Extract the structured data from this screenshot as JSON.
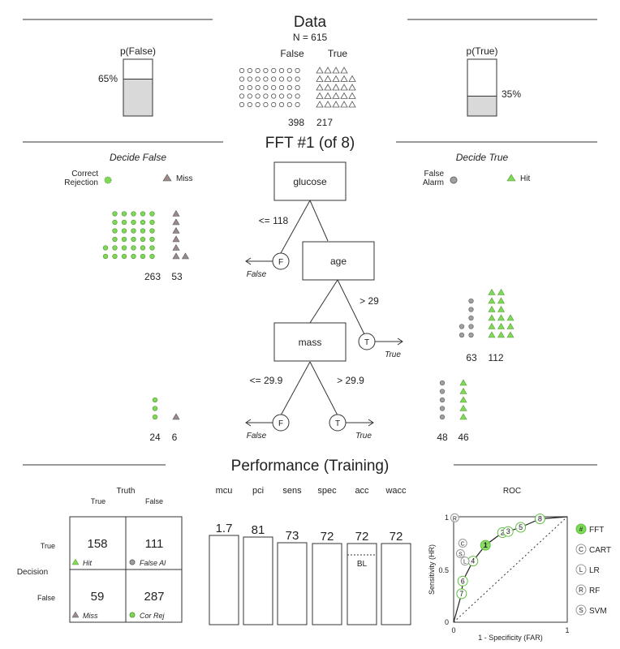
{
  "data_section": {
    "title": "Data",
    "n_label": "N = 615",
    "class_false": "False",
    "class_true": "True",
    "count_false": "398",
    "count_true": "217",
    "p_false_label": "p(False)",
    "p_false_pct": "65%",
    "p_false_value": 0.65,
    "p_true_label": "p(True)",
    "p_true_pct": "35%",
    "p_true_value": 0.35
  },
  "tree": {
    "title": "FFT #1 (of 8)",
    "decide_false": "Decide False",
    "decide_true": "Decide True",
    "legend": {
      "correct_rejection": "Correct Rejection",
      "miss": "Miss",
      "false_alarm": "False Alarm",
      "hit": "Hit"
    },
    "nodes": {
      "glucose": "glucose",
      "age": "age",
      "mass": "mass"
    },
    "edges": {
      "glucose_le": "<= 118",
      "age_gt": "> 29",
      "mass_le": "<= 29.9",
      "mass_gt": "> 29.9"
    },
    "exits": {
      "f": "F",
      "t": "T",
      "false_label": "False",
      "true_label": "True"
    },
    "leaves": {
      "glucose_false": {
        "cr": "263",
        "miss": "53"
      },
      "age_true": {
        "fa": "63",
        "hit": "112"
      },
      "mass_false": {
        "cr": "24",
        "miss": "6"
      },
      "mass_true": {
        "fa": "48",
        "hit": "46"
      }
    },
    "colors": {
      "green": "#7ed957",
      "gray": "#a0a0a0",
      "miss": "#9a8a8a"
    }
  },
  "performance": {
    "title": "Performance (Training)",
    "matrix": {
      "truth_label": "Truth",
      "decision_label": "Decision",
      "col_true": "True",
      "col_false": "False",
      "row_true": "True",
      "row_false": "False",
      "hit": "158",
      "false_alarm": "111",
      "miss": "59",
      "correct_rejection": "287",
      "hit_label": "Hit",
      "fa_label": "False Al",
      "miss_label": "Miss",
      "cr_label": "Cor Rej"
    },
    "stats": {
      "headers": [
        "mcu",
        "pci",
        "sens",
        "spec",
        "acc",
        "wacc"
      ],
      "values": [
        "1.7",
        "81",
        "73",
        "72",
        "72",
        "72"
      ],
      "bl_label": "BL"
    },
    "roc": {
      "title": "ROC",
      "xlabel": "1 - Specificity (FAR)",
      "ylabel": "Sensitivity (HR)",
      "tick_0": "0",
      "tick_1": "1",
      "tick_05": "0.5",
      "legend": [
        {
          "symbol": "#",
          "label": "FFT"
        },
        {
          "symbol": "C",
          "label": "CART"
        },
        {
          "symbol": "L",
          "label": "LR"
        },
        {
          "symbol": "R",
          "label": "RF"
        },
        {
          "symbol": "S",
          "label": "SVM"
        }
      ]
    }
  },
  "chart_data": {
    "type": "scatter",
    "title": "ROC",
    "xlabel": "1 - Specificity (FAR)",
    "ylabel": "Sensitivity (HR)",
    "xlim": [
      0,
      1
    ],
    "ylim": [
      0,
      1
    ],
    "series": [
      {
        "name": "FFT",
        "points": [
          {
            "label": "1",
            "x": 0.28,
            "y": 0.73
          },
          {
            "label": "2",
            "x": 0.43,
            "y": 0.85
          },
          {
            "label": "3",
            "x": 0.48,
            "y": 0.86
          },
          {
            "label": "4",
            "x": 0.17,
            "y": 0.58
          },
          {
            "label": "5",
            "x": 0.59,
            "y": 0.9
          },
          {
            "label": "6",
            "x": 0.08,
            "y": 0.39
          },
          {
            "label": "7",
            "x": 0.07,
            "y": 0.27
          },
          {
            "label": "8",
            "x": 0.76,
            "y": 0.98
          }
        ]
      },
      {
        "name": "CART",
        "points": [
          {
            "label": "C",
            "x": 0.08,
            "y": 0.75
          }
        ]
      },
      {
        "name": "LR",
        "points": [
          {
            "label": "L",
            "x": 0.1,
            "y": 0.58
          }
        ]
      },
      {
        "name": "SVM",
        "points": [
          {
            "label": "S",
            "x": 0.06,
            "y": 0.65
          }
        ]
      },
      {
        "name": "RF",
        "points": [
          {
            "label": "R",
            "x": 0.01,
            "y": 0.99
          }
        ]
      }
    ]
  }
}
